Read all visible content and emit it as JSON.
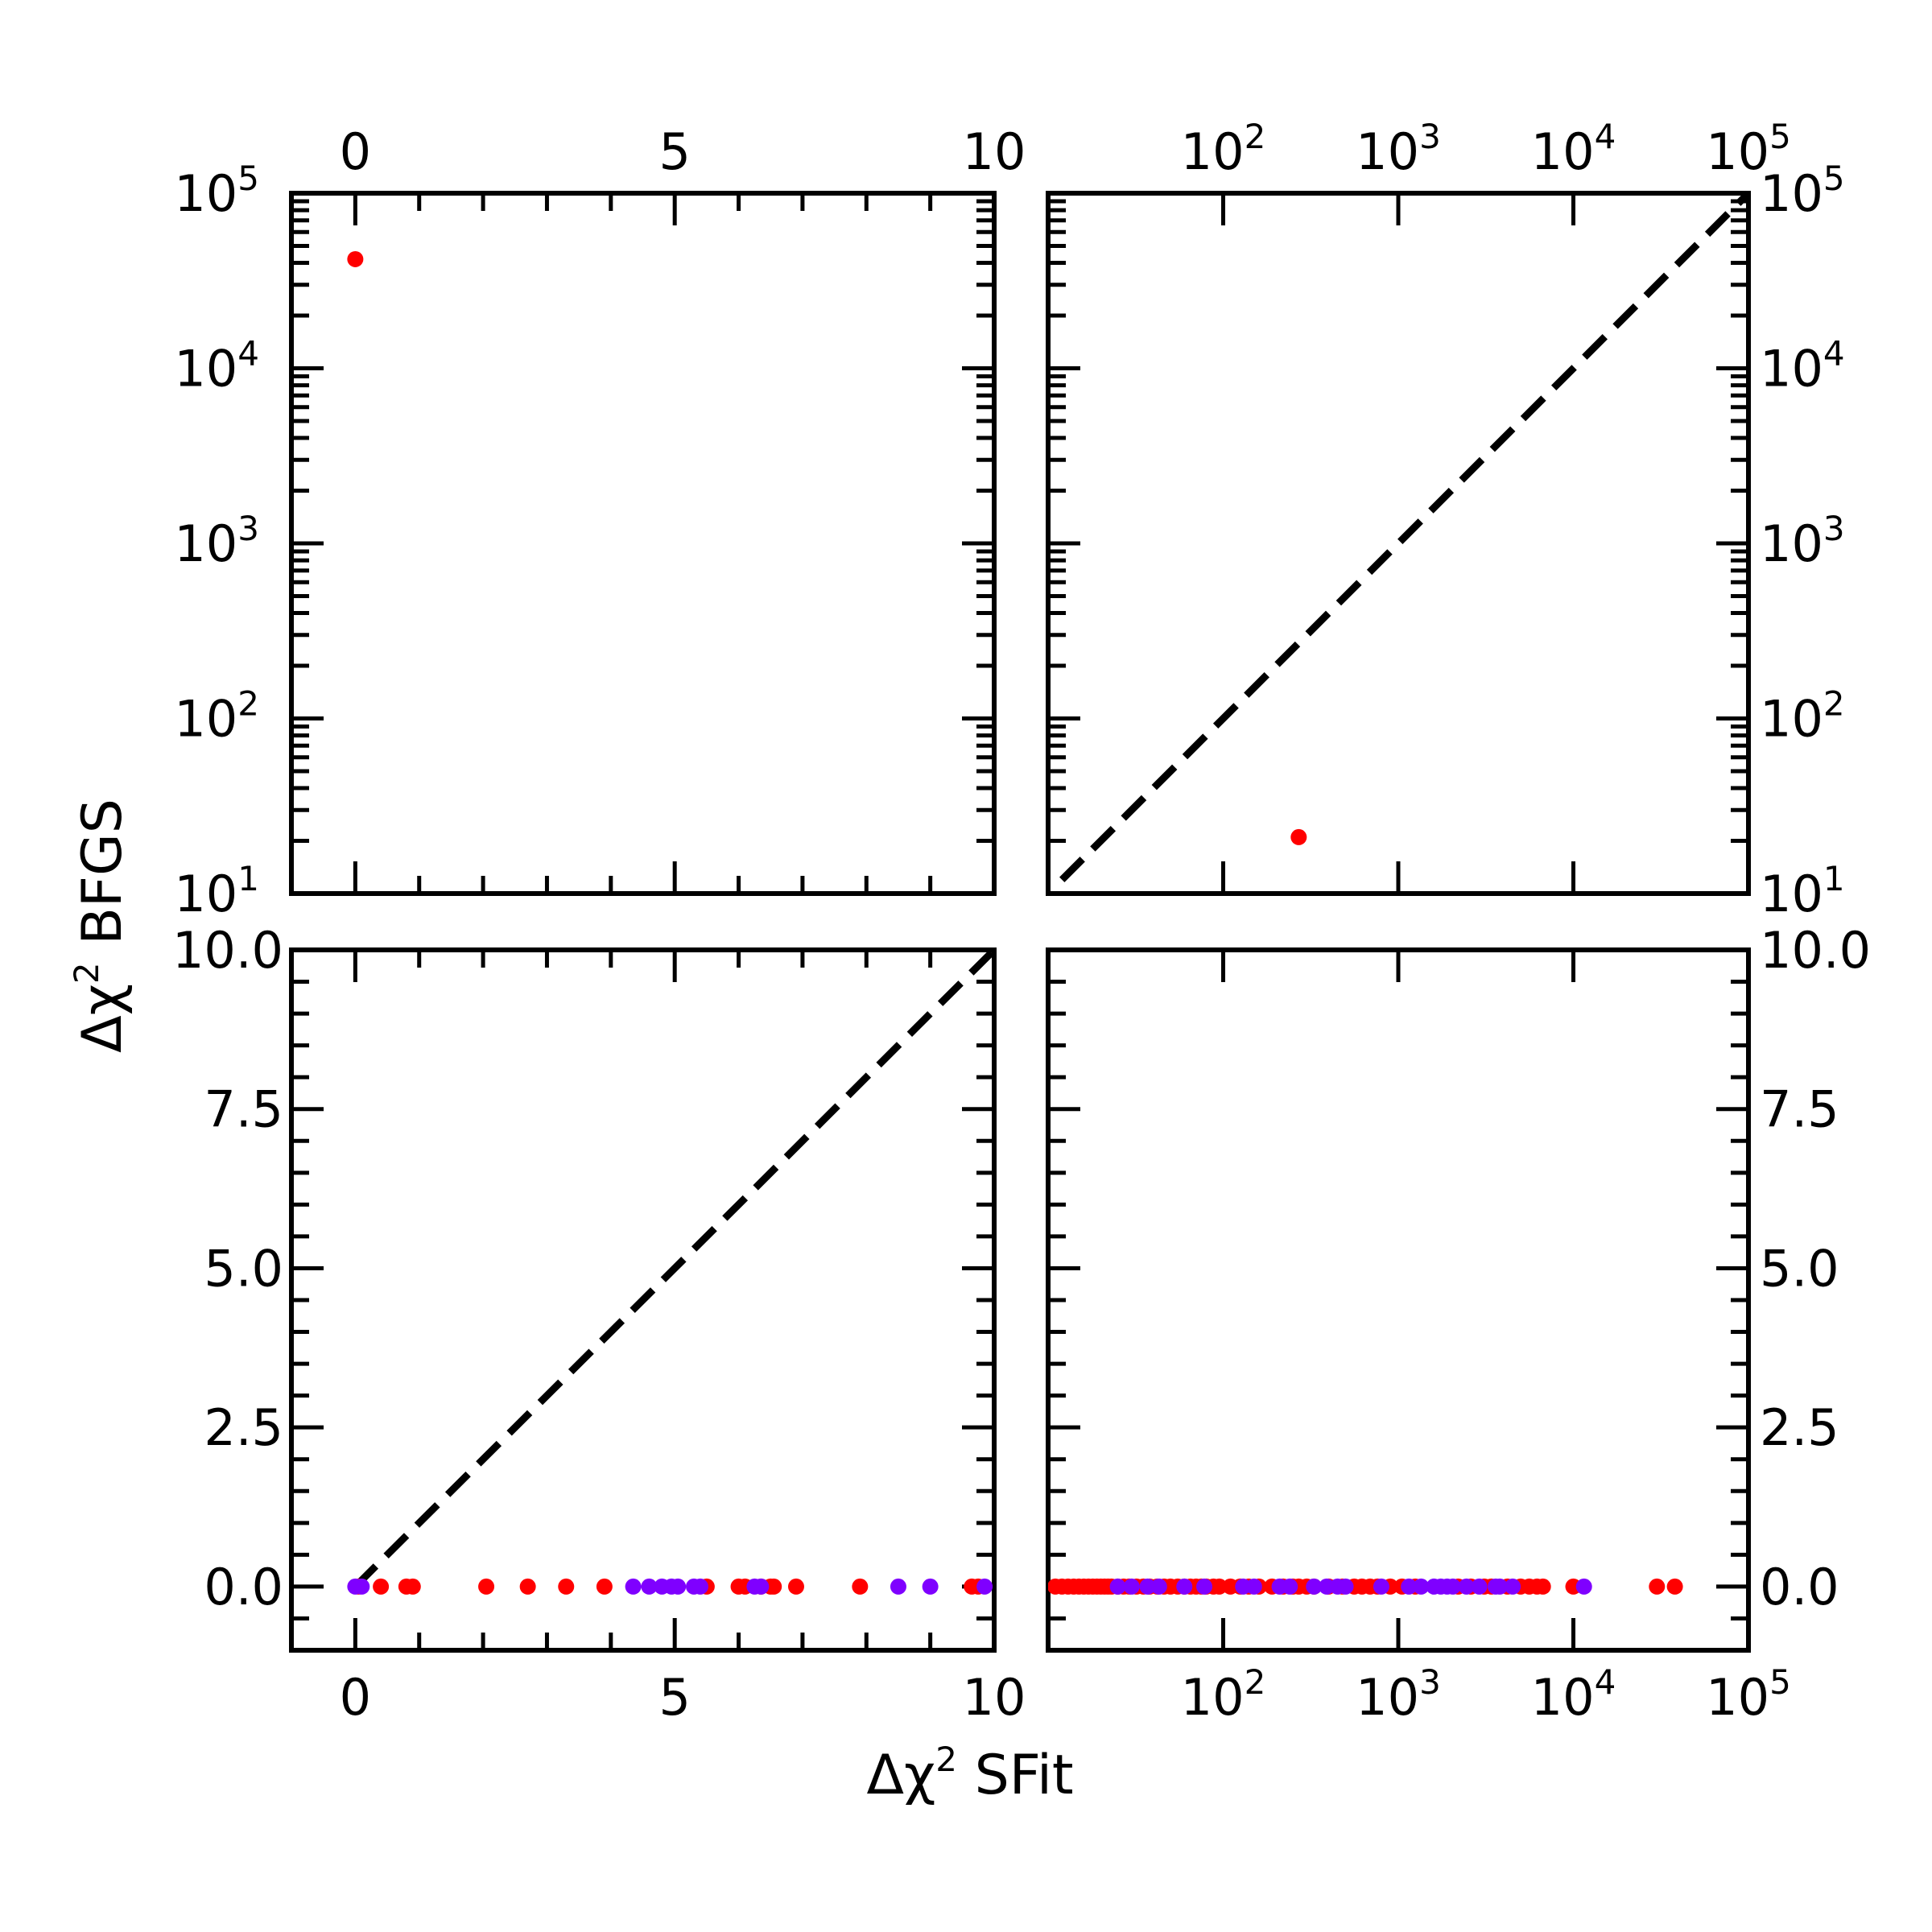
{
  "chart_data": [
    {
      "panel": "top-left",
      "type": "scatter",
      "x_scale": "linear",
      "y_scale": "log",
      "xlim": [
        -1,
        10
      ],
      "ylim": [
        10,
        100000
      ],
      "x_ticks": [
        0,
        5,
        10
      ],
      "y_ticks": [
        10,
        100,
        1000,
        10000,
        100000
      ],
      "x_tick_labels_side": "top",
      "y_tick_labels_side": "left",
      "diagonal": false,
      "series": [
        {
          "color": "#ff0000",
          "x": [
            0
          ],
          "y": [
            42000
          ]
        },
        {
          "color": "#7f00ff",
          "x": [],
          "y": []
        }
      ]
    },
    {
      "panel": "top-right",
      "type": "scatter",
      "x_scale": "log",
      "y_scale": "log",
      "xlim": [
        10,
        100000
      ],
      "ylim": [
        10,
        100000
      ],
      "x_ticks": [
        100,
        1000,
        10000,
        100000
      ],
      "y_ticks": [
        10,
        100,
        1000,
        10000,
        100000
      ],
      "x_tick_labels_side": "top",
      "y_tick_labels_side": "right",
      "diagonal": true,
      "series": [
        {
          "color": "#ff0000",
          "x": [
            270
          ],
          "y": [
            21
          ]
        },
        {
          "color": "#7f00ff",
          "x": [],
          "y": []
        }
      ]
    },
    {
      "panel": "bottom-left",
      "type": "scatter",
      "x_scale": "linear",
      "y_scale": "linear",
      "xlim": [
        -1,
        10
      ],
      "ylim": [
        -1,
        10
      ],
      "x_ticks": [
        0,
        5,
        10
      ],
      "y_ticks": [
        0.0,
        2.5,
        5.0,
        7.5,
        10.0
      ],
      "x_tick_labels_side": "bottom",
      "y_tick_labels_side": "left",
      "diagonal": true,
      "series": [
        {
          "color": "#ff0000",
          "x": [
            0.05,
            0.4,
            0.8,
            0.9,
            2.05,
            2.7,
            3.3,
            3.9,
            5.5,
            6.0,
            6.1,
            6.35,
            6.5,
            6.55,
            6.9,
            7.9,
            9.65,
            9.75
          ],
          "y": [
            0,
            0,
            0,
            0,
            0,
            0,
            0,
            0,
            0,
            0,
            0,
            0,
            0,
            0,
            0,
            0,
            0,
            0
          ]
        },
        {
          "color": "#7f00ff",
          "x": [
            0.0,
            0.1,
            4.35,
            4.6,
            4.8,
            4.95,
            5.05,
            5.3,
            5.4,
            6.25,
            6.35,
            8.5,
            9.0,
            9.85
          ],
          "y": [
            0,
            0,
            0,
            0,
            0,
            0,
            0,
            0,
            0,
            0,
            0,
            0,
            0,
            0
          ]
        }
      ]
    },
    {
      "panel": "bottom-right",
      "type": "scatter",
      "x_scale": "log",
      "y_scale": "linear",
      "xlim": [
        10,
        100000
      ],
      "ylim": [
        -1,
        10
      ],
      "x_ticks": [
        100,
        1000,
        10000,
        100000
      ],
      "y_ticks": [
        0.0,
        2.5,
        5.0,
        7.5,
        10.0
      ],
      "x_tick_labels_side": "bottom",
      "y_tick_labels_side": "right",
      "diagonal": false,
      "series": [
        {
          "color": "#ff0000",
          "x": [
            11,
            12,
            13,
            14,
            15,
            16,
            17,
            18,
            19,
            20,
            21,
            22,
            23,
            25,
            27,
            29,
            32,
            35,
            38,
            42,
            46,
            50,
            55,
            60,
            65,
            70,
            75,
            80,
            88,
            95,
            110,
            125,
            140,
            160,
            190,
            220,
            250,
            270,
            300,
            330,
            400,
            480,
            560,
            620,
            690,
            760,
            900,
            1050,
            1250,
            2200,
            2600,
            3100,
            3400,
            4200,
            5000,
            5600,
            6200,
            6700,
            10000,
            30000,
            38000
          ],
          "y": [
            0,
            0,
            0,
            0,
            0,
            0,
            0,
            0,
            0,
            0,
            0,
            0,
            0,
            0,
            0,
            0,
            0,
            0,
            0,
            0,
            0,
            0,
            0,
            0,
            0,
            0,
            0,
            0,
            0,
            0,
            0,
            0,
            0,
            0,
            0,
            0,
            0,
            0,
            0,
            0,
            0,
            0,
            0,
            0,
            0,
            0,
            0,
            0,
            0,
            0,
            0,
            0,
            0,
            0,
            0,
            0,
            0,
            0,
            0,
            0,
            0
          ]
        },
        {
          "color": "#7f00ff",
          "x": [
            25,
            30,
            37,
            43,
            60,
            78,
            130,
            150,
            210,
            240,
            330,
            390,
            450,
            500,
            800,
            1150,
            1350,
            1600,
            1750,
            1900,
            2050,
            2450,
            2900,
            3600,
            3800,
            4500,
            11500
          ],
          "y": [
            0,
            0,
            0,
            0,
            0,
            0,
            0,
            0,
            0,
            0,
            0,
            0,
            0,
            0,
            0,
            0,
            0,
            0,
            0,
            0,
            0,
            0,
            0,
            0,
            0,
            0,
            0
          ]
        }
      ]
    }
  ],
  "labels": {
    "xlabel_prefix": "Δχ",
    "xlabel_exp": "2",
    "xlabel_suffix": " SFit",
    "ylabel_prefix": "Δχ",
    "ylabel_exp": "2",
    "ylabel_suffix": " BFGS",
    "linear_x_tick_labels": [
      "0",
      "5",
      "10"
    ],
    "linear_y_tick_labels": [
      "0.0",
      "2.5",
      "5.0",
      "7.5",
      "10.0"
    ],
    "log_tick_base": "10",
    "log_tick_exponents": [
      "1",
      "2",
      "3",
      "4",
      "5"
    ]
  },
  "colors": {
    "red_series": "#ff0000",
    "purple_series": "#7f00ff",
    "axes": "#000000",
    "diagonal": "#000000"
  }
}
